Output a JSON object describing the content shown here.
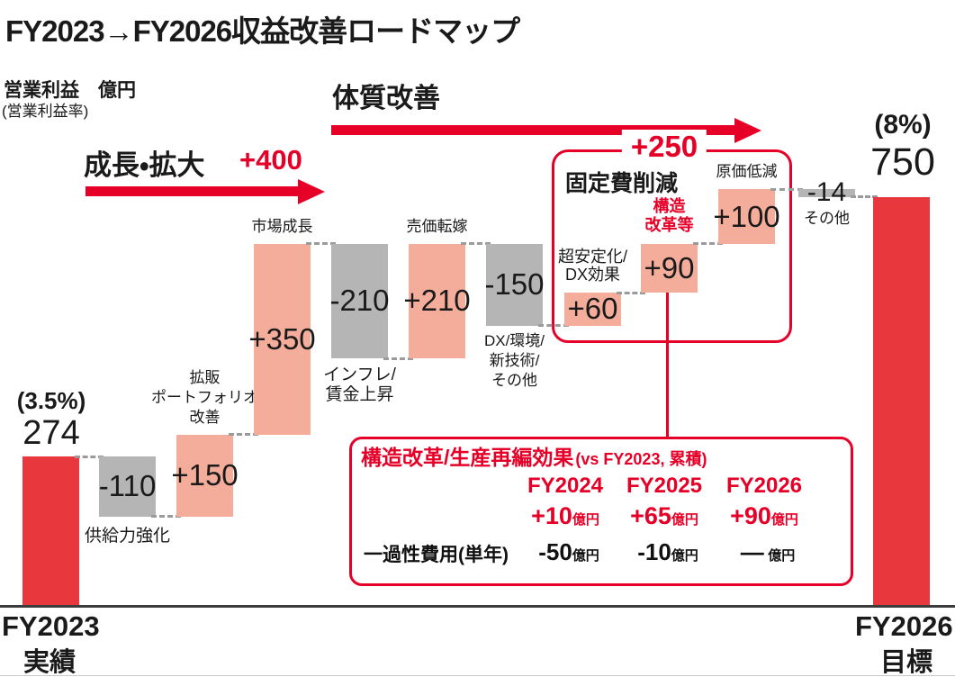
{
  "page_title": "FY2023→FY2026収益改善ロードマップ",
  "y_axis": {
    "title": "営業利益　億円",
    "subtitle": "(営業利益率)"
  },
  "phase_arrows": {
    "growth": {
      "label": "成長・拡大",
      "amount": "+400"
    },
    "improvement": {
      "label": "体質改善"
    }
  },
  "fixed_cost_box": {
    "amount": "+250",
    "title": "固定費削減"
  },
  "x_axis": {
    "left_line1": "FY2023",
    "left_line2": "実績",
    "right_line1": "FY2026",
    "right_line2": "目標"
  },
  "colors": {
    "bar_red": "#e8383d",
    "bar_salmon": "#f4ad9b",
    "bar_gray": "#b5b5b5",
    "accent_red": "#e60028",
    "axis": "#3c3c3c"
  },
  "chart_data": {
    "type": "bar",
    "subtype": "waterfall",
    "unit": "億円",
    "baseline": 0,
    "start": {
      "label": "FY2023実績",
      "value": 274,
      "margin_rate": "(3.5%)"
    },
    "end": {
      "label": "FY2026目標",
      "value": 750,
      "margin_rate": "(8%)"
    },
    "growth_total": "+400",
    "improvement_total": "+250",
    "bars": [
      {
        "name": "FY2023実績",
        "kind": "start",
        "value": 274,
        "color": "red",
        "display": "",
        "callout": []
      },
      {
        "name": "供給力強化",
        "kind": "delta",
        "value": -110,
        "color": "gray",
        "display": "-110",
        "callout": [
          "供給力強化"
        ]
      },
      {
        "name": "拡販ポートフォリオ改善",
        "kind": "delta",
        "value": 150,
        "color": "salmon",
        "display": "+150",
        "callout": [
          "拡販",
          "ポートフォリオ",
          "改善"
        ]
      },
      {
        "name": "市場成長",
        "kind": "delta",
        "value": 350,
        "color": "salmon",
        "display": "+350",
        "callout": [
          "市場成長"
        ]
      },
      {
        "name": "インフレ/賃金上昇",
        "kind": "delta",
        "value": -210,
        "color": "gray",
        "display": "-210",
        "callout": [
          "インフレ/",
          "賃金上昇"
        ]
      },
      {
        "name": "売価転嫁",
        "kind": "delta",
        "value": 210,
        "color": "salmon",
        "display": "+210",
        "callout": [
          "売価転嫁"
        ]
      },
      {
        "name": "DX/環境/新技術/その他",
        "kind": "delta",
        "value": -150,
        "color": "gray",
        "display": "-150",
        "callout": [
          "DX/環境/",
          "新技術/",
          "その他"
        ]
      },
      {
        "name": "超安定化/DX効果",
        "kind": "delta",
        "value": 60,
        "color": "salmon",
        "display": "+60",
        "callout": [
          "超安定化/",
          "DX効果"
        ]
      },
      {
        "name": "構造改革等",
        "kind": "delta",
        "value": 90,
        "color": "salmon",
        "display": "+90",
        "callout": [
          "構造",
          "改革等"
        ]
      },
      {
        "name": "原価低減",
        "kind": "delta",
        "value": 100,
        "color": "salmon",
        "display": "+100",
        "callout": [
          "原価低減"
        ]
      },
      {
        "name": "その他",
        "kind": "delta",
        "value": -14,
        "color": "gray",
        "display": "-14",
        "callout": [
          "その他"
        ]
      },
      {
        "name": "FY2026目標",
        "kind": "total",
        "value": 750,
        "color": "red",
        "display": "",
        "callout": []
      }
    ]
  },
  "reform_box": {
    "title": "構造改革/生産再編効果",
    "title_suffix": "(vs FY2023, 累積)",
    "years": [
      "FY2024",
      "FY2025",
      "FY2026"
    ],
    "cumulative": [
      {
        "num": "+10",
        "unit": "億円"
      },
      {
        "num": "+65",
        "unit": "億円"
      },
      {
        "num": "+90",
        "unit": "億円"
      }
    ],
    "one_time_label": "一過性費用(単年)",
    "one_time": [
      {
        "num": "-50",
        "unit": "億円"
      },
      {
        "num": "-10",
        "unit": "億円"
      },
      {
        "num": "—",
        "unit": "億円"
      }
    ]
  }
}
